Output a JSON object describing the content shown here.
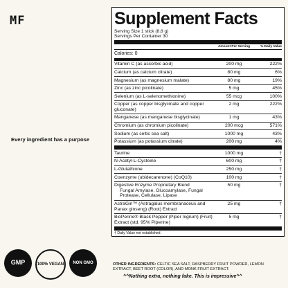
{
  "brand": "MF",
  "tagline": "Every ingredient has a purpose",
  "badges": [
    "GMP",
    "100% VEGAN",
    "NON GMO"
  ],
  "panel": {
    "title": "Supplement Facts",
    "serving_size": "Serving Size 1 stick (8.8 g)",
    "servings_per_container": "Servings Per Container 30",
    "col_amount": "Amount Per Serving",
    "col_dv": "% Daily Value",
    "calories": "Calories: 0",
    "vitamins": [
      {
        "name": "Vitamin C (as ascorbic acid)",
        "amount": "200 mg",
        "dv": "222%"
      },
      {
        "name": "Calcium (as calcium citrate)",
        "amount": "80 mg",
        "dv": "6%"
      },
      {
        "name": "Magnesium (as magnesium malate)",
        "amount": "80 mg",
        "dv": "19%"
      },
      {
        "name": "Zinc (as zinc picolinate)",
        "amount": "5 mg",
        "dv": "45%"
      },
      {
        "name": "Selenium (as L-selenomethionine)",
        "amount": "55 mcg",
        "dv": "100%"
      },
      {
        "name": "Copper (as copper bisglycinate and copper gluconate)",
        "amount": "2 mg",
        "dv": "222%"
      },
      {
        "name": "Manganese (as manganese bisglycinate)",
        "amount": "1 mg",
        "dv": "43%"
      },
      {
        "name": "Chromium (as chromium picolinate)",
        "amount": "200 mcg",
        "dv": "571%"
      },
      {
        "name": "Sodium (as celtic sea salt)",
        "amount": "1000 mg",
        "dv": "43%"
      },
      {
        "name": "Potassium (as potassium citrate)",
        "amount": "200 mg",
        "dv": "4%"
      }
    ],
    "others": [
      {
        "name": "Taurine",
        "amount": "1000 mg",
        "dv": "†"
      },
      {
        "name": "N-Acetyl-L-Cysteine",
        "amount": "600 mg",
        "dv": "†"
      },
      {
        "name": "L-Glutathione",
        "amount": "250 mg",
        "dv": "†"
      },
      {
        "name": "Coenzyme (ubidecarenone) (CoQ10)",
        "amount": "100 mg",
        "dv": "†"
      },
      {
        "name": "Digestive Enzyme Proprietary Blend",
        "amount": "50 mg",
        "dv": "†",
        "sub": "Fungal Amylase, Glucoamylase, Fungal Protease, Cellulase, Lipase"
      },
      {
        "name": "AstraGin™ (Astragalus membranaceus and Panax ginseng) (Root) Extract",
        "amount": "25 mg",
        "dv": "†"
      },
      {
        "name": "BioPerine® Black Pepper (Piper nigrum) (Fruit) Extract (std. 95% Piperine)",
        "amount": "5 mg",
        "dv": "†"
      }
    ],
    "footnote": "† Daily Value not established."
  },
  "other_ingredients_label": "OTHER INGREDIENTS:",
  "other_ingredients": "CELTIC SEA SALT, RASPBERRY FRUIT POWDER, LEMON EXTRACT, BEET ROOT (COLOR), AND MONK FRUIT EXTRACT.",
  "punchline": "^^Nothing extra, nothing fake. This is impressive^^"
}
